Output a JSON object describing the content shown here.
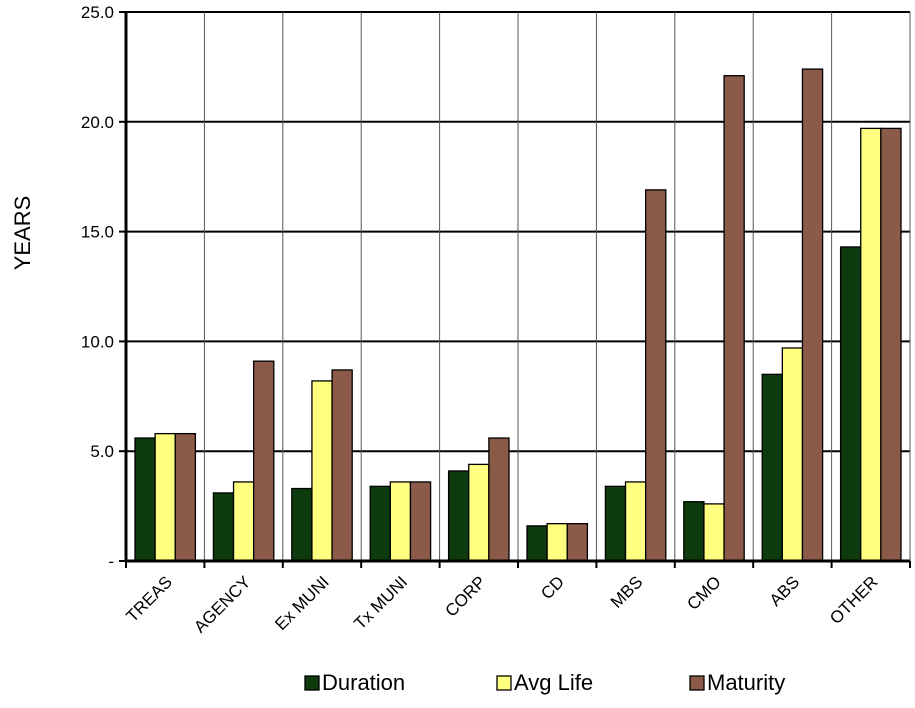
{
  "chart_data": {
    "type": "bar",
    "ylabel": "YEARS",
    "ylim": [
      0,
      25
    ],
    "yticks": [
      "-",
      "5.0",
      "10.0",
      "15.0",
      "20.0",
      "25.0"
    ],
    "categories": [
      "TREAS",
      "AGENCY",
      "Ex MUNI",
      "Tx MUNI",
      "CORP",
      "CD",
      "MBS",
      "CMO",
      "ABS",
      "OTHER"
    ],
    "series": [
      {
        "name": "Duration",
        "color": "#0d3b0d",
        "values": [
          5.6,
          3.1,
          3.3,
          3.4,
          4.1,
          1.6,
          3.4,
          2.7,
          8.5,
          14.3
        ]
      },
      {
        "name": "Avg Life",
        "color": "#ffff80",
        "values": [
          5.8,
          3.6,
          8.2,
          3.6,
          4.4,
          1.7,
          3.6,
          2.6,
          9.7,
          19.7
        ]
      },
      {
        "name": "Maturity",
        "color": "#8b5a48",
        "values": [
          5.8,
          9.1,
          8.7,
          3.6,
          5.6,
          1.7,
          16.9,
          22.1,
          22.4,
          19.7
        ]
      }
    ],
    "grid": true,
    "legend": "bottom"
  }
}
